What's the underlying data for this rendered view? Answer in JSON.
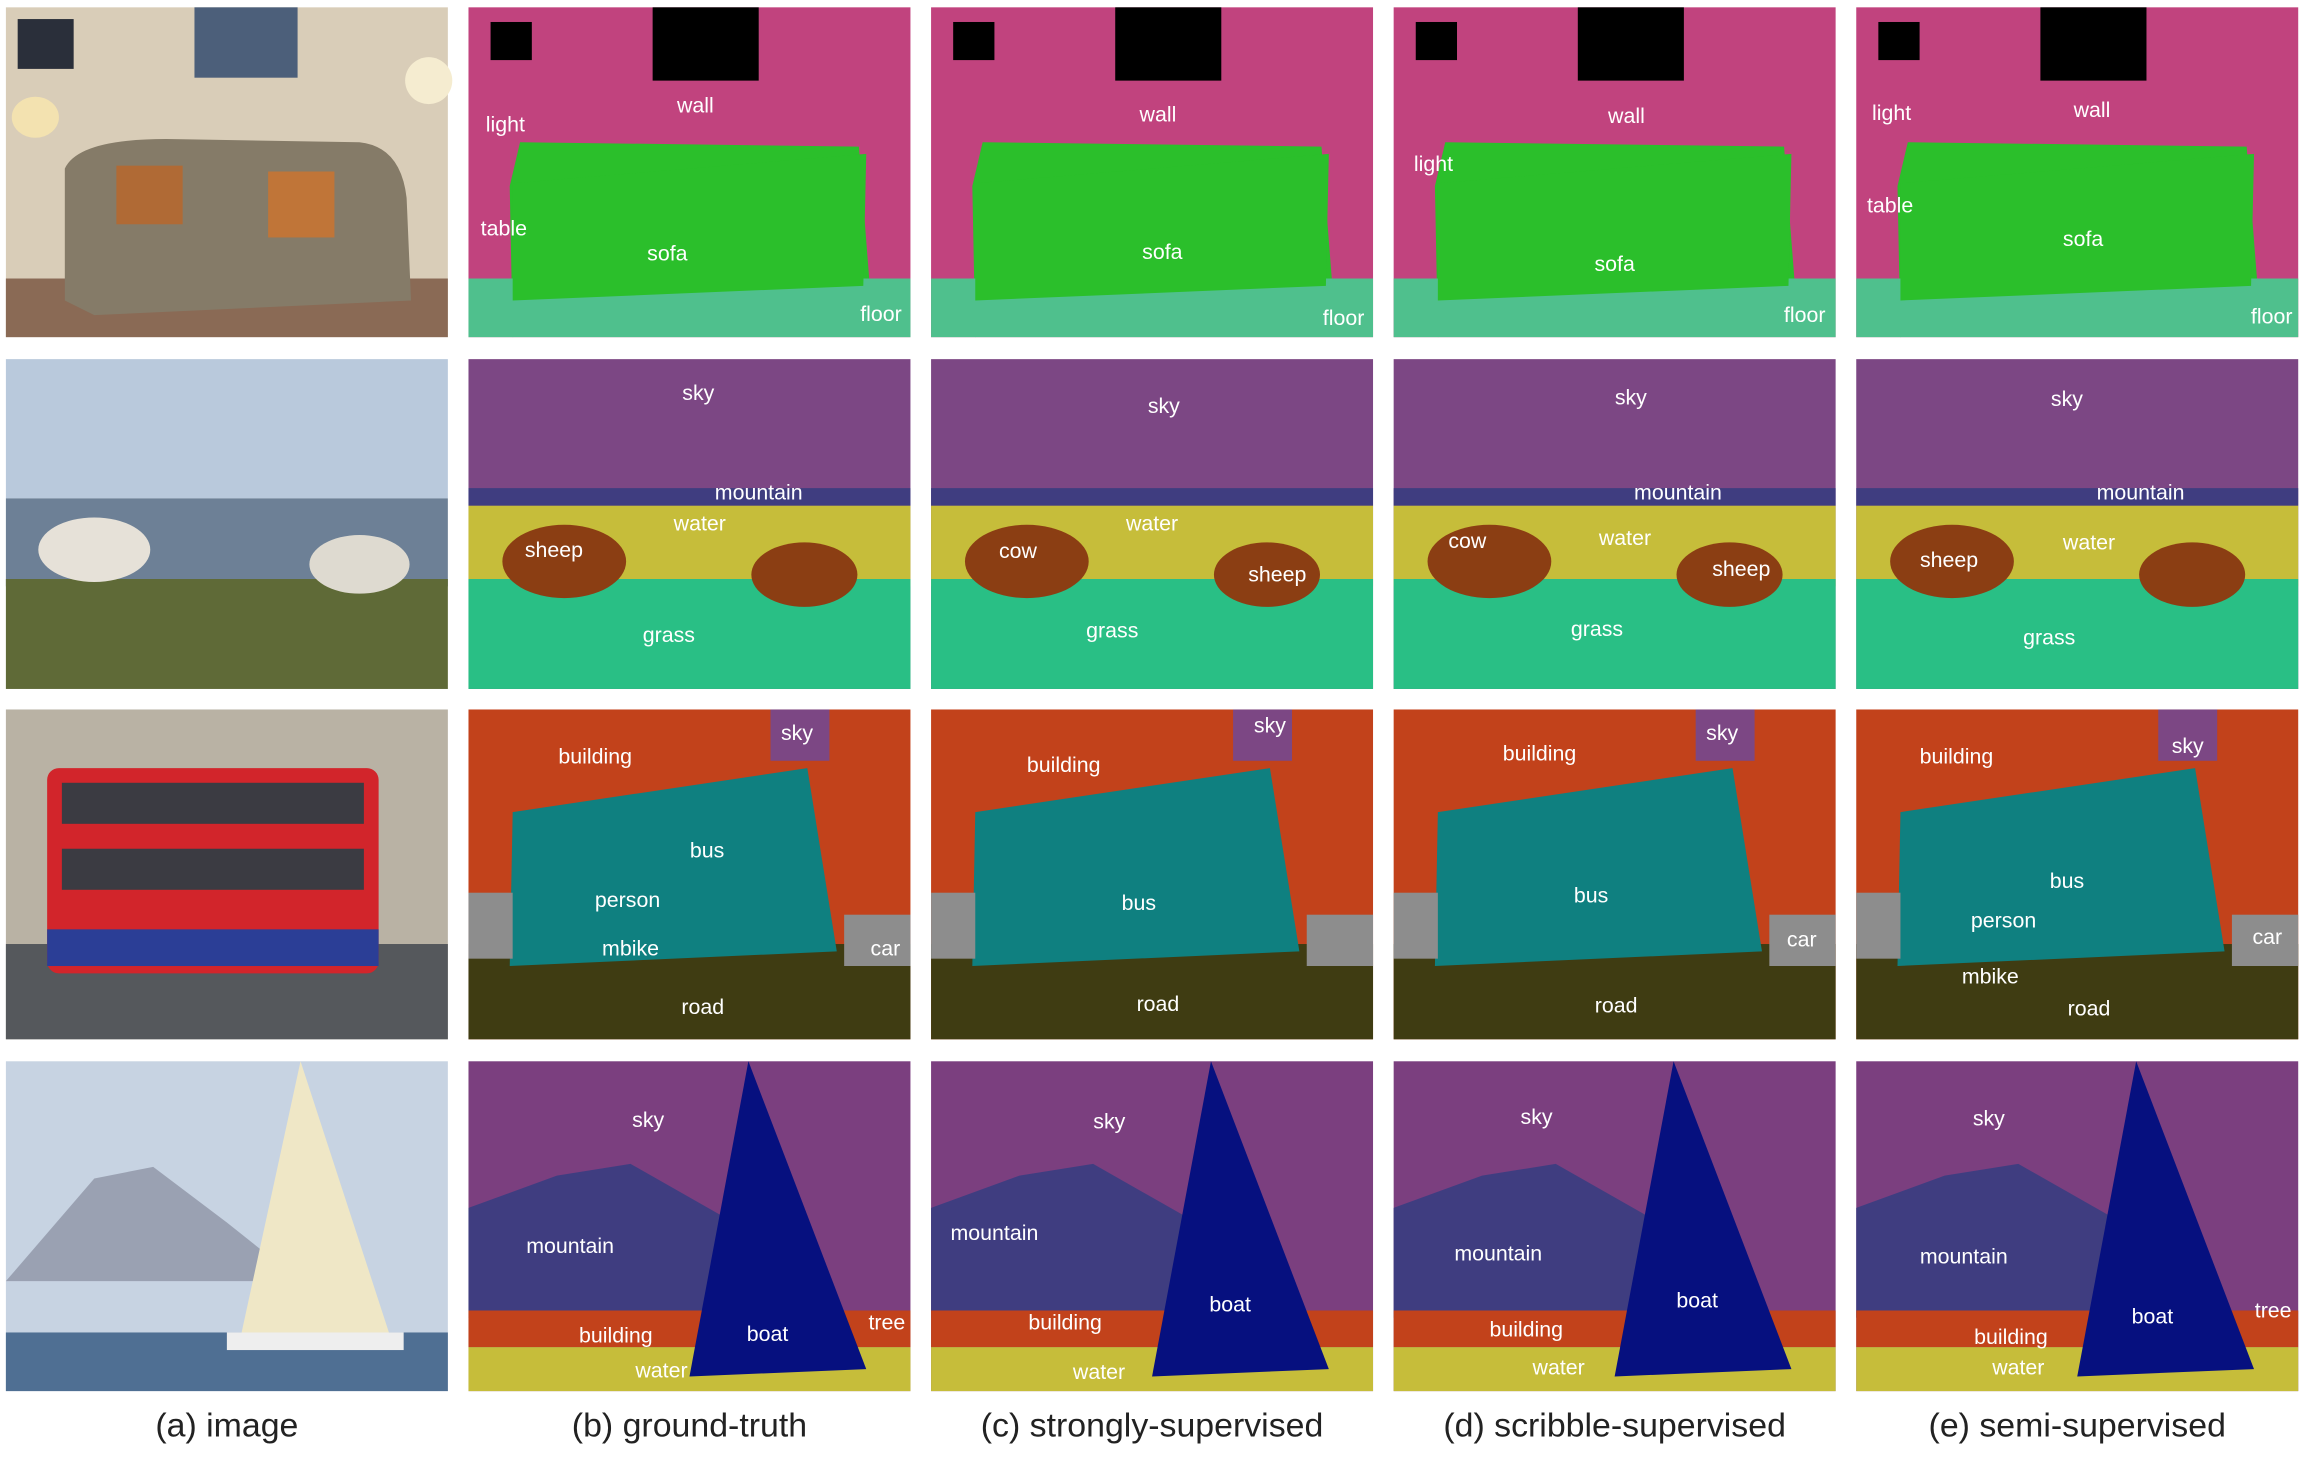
{
  "columns": [
    "(a) image",
    "(b) ground-truth",
    "(c) strongly-supervised",
    "(d) scribble-supervised",
    "(e) semi-supervised"
  ],
  "rows": [
    [
      [
        "light",
        "wall",
        "table",
        "sofa",
        "floor"
      ],
      [
        "wall",
        "sofa",
        "floor"
      ],
      [
        "light",
        "wall",
        "sofa",
        "floor"
      ],
      [
        "light",
        "wall",
        "table",
        "sofa",
        "floor"
      ]
    ],
    [
      [
        "sky",
        "mountain",
        "water",
        "sheep",
        "grass"
      ],
      [
        "sky",
        "water",
        "cow",
        "sheep",
        "grass"
      ],
      [
        "sky",
        "mountain",
        "cow",
        "water",
        "sheep",
        "grass"
      ],
      [
        "sky",
        "mountain",
        "sheep",
        "water",
        "grass"
      ]
    ],
    [
      [
        "building",
        "sky",
        "bus",
        "person",
        "mbike",
        "car",
        "road"
      ],
      [
        "sky",
        "building",
        "bus",
        "road"
      ],
      [
        "building",
        "sky",
        "bus",
        "car",
        "road"
      ],
      [
        "building",
        "sky",
        "bus",
        "person",
        "car",
        "mbike",
        "road"
      ]
    ],
    [
      [
        "sky",
        "mountain",
        "building",
        "boat",
        "tree",
        "water"
      ],
      [
        "sky",
        "mountain",
        "boat",
        "building",
        "water"
      ],
      [
        "sky",
        "mountain",
        "boat",
        "building",
        "water"
      ],
      [
        "sky",
        "mountain",
        "boat",
        "tree",
        "building",
        "water"
      ]
    ]
  ]
}
